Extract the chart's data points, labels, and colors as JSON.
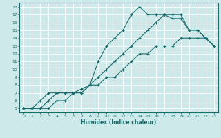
{
  "xlabel": "Humidex (Indice chaleur)",
  "bg_color": "#cde9e9",
  "line_color": "#1a6b6b",
  "grid_color": "#ffffff",
  "xlim": [
    -0.5,
    23.5
  ],
  "ylim": [
    4.5,
    18.5
  ],
  "xticks": [
    0,
    1,
    2,
    3,
    4,
    5,
    6,
    7,
    8,
    9,
    10,
    11,
    12,
    13,
    14,
    15,
    16,
    17,
    18,
    19,
    20,
    21,
    22,
    23
  ],
  "yticks": [
    5,
    6,
    7,
    8,
    9,
    10,
    11,
    12,
    13,
    14,
    15,
    16,
    17,
    18
  ],
  "line1_x": [
    0,
    1,
    2,
    3,
    4,
    5,
    6,
    7,
    8,
    9,
    10,
    11,
    12,
    13,
    14,
    15,
    16,
    17,
    18,
    19,
    20,
    21,
    22,
    23
  ],
  "line1_y": [
    5,
    5,
    5,
    6,
    7,
    7,
    7,
    7,
    8,
    11,
    13,
    14,
    15,
    17,
    18,
    17,
    17,
    17,
    16.5,
    16.5,
    15,
    15,
    14,
    13
  ],
  "line2_x": [
    0,
    1,
    2,
    3,
    4,
    5,
    6,
    7,
    8,
    9,
    10,
    11,
    12,
    13,
    14,
    15,
    16,
    17,
    18,
    19,
    20,
    21,
    22,
    23
  ],
  "line2_y": [
    5,
    5,
    6,
    7,
    7,
    7,
    7,
    7.5,
    8,
    9,
    10,
    11,
    12,
    13,
    14,
    15,
    16,
    17,
    17,
    17,
    15,
    15,
    14,
    13
  ],
  "line3_x": [
    0,
    1,
    2,
    3,
    4,
    5,
    6,
    7,
    8,
    9,
    10,
    11,
    12,
    13,
    14,
    15,
    16,
    17,
    18,
    19,
    20,
    21,
    22,
    23
  ],
  "line3_y": [
    5,
    5,
    5,
    5,
    6,
    6,
    7,
    7,
    8,
    8,
    9,
    9,
    10,
    11,
    12,
    12,
    13,
    13,
    13,
    14,
    14,
    14,
    14,
    13
  ]
}
